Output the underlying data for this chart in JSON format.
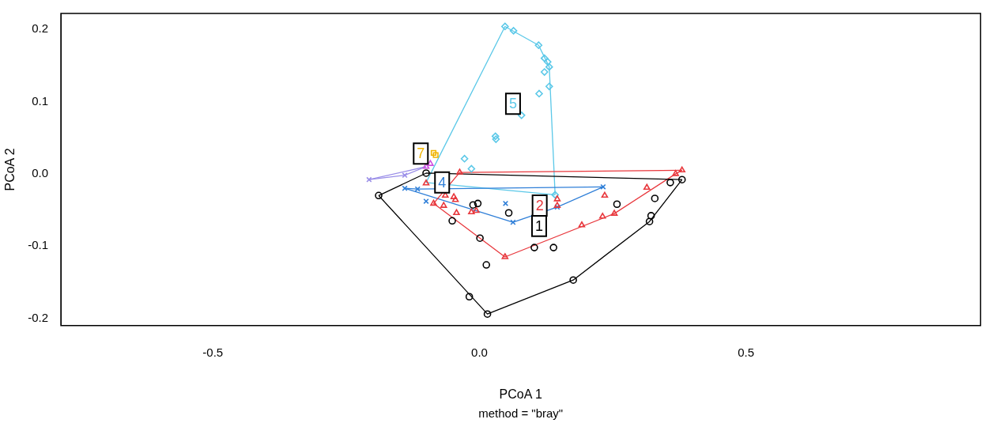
{
  "chart_data": {
    "type": "scatter",
    "xlabel": "PCoA 1",
    "ylabel": "PCoA 2",
    "xlim": [
      -0.785,
      0.94
    ],
    "ylim": [
      -0.21,
      0.222
    ],
    "xticks": [
      -0.5,
      {
        "value": 0,
        "label": "0.0"
      },
      0.5
    ],
    "yticks": [
      -0.2,
      -0.1,
      {
        "value": 0,
        "label": "0.0"
      },
      0.1,
      0.2
    ],
    "grid": false,
    "legend": false,
    "annotations": [
      {
        "text": "1",
        "x": 0.112,
        "y": -0.072
      },
      {
        "text": "2",
        "x": 0.113,
        "y": -0.044
      },
      {
        "text": "4",
        "x": -0.07,
        "y": -0.012
      },
      {
        "text": "5",
        "x": 0.063,
        "y": 0.097
      },
      {
        "text": "7",
        "x": -0.11,
        "y": 0.028
      },
      "method = \"bray\""
    ],
    "series": [
      {
        "type": "scatter",
        "marker": "circle",
        "color": "#000000",
        "x": [
          -0.189,
          -0.1,
          -0.012,
          -0.003,
          0.055,
          -0.051,
          0.001,
          0.013,
          -0.019,
          0.015,
          0.103,
          0.139,
          0.176,
          0.258,
          0.329,
          0.322,
          0.319,
          0.358,
          0.38
        ],
        "values": [
          -0.03,
          0.001,
          -0.043,
          -0.041,
          -0.054,
          -0.065,
          -0.089,
          -0.126,
          -0.17,
          -0.194,
          -0.102,
          -0.102,
          -0.147,
          -0.042,
          -0.034,
          -0.058,
          -0.066,
          -0.012,
          -0.008
        ]
      },
      {
        "type": "scatter",
        "marker": "triangle",
        "color": "#e8383d",
        "x": [
          -0.037,
          -0.1,
          -0.086,
          -0.067,
          -0.064,
          -0.048,
          -0.045,
          -0.043,
          -0.015,
          -0.006,
          0.048,
          0.146,
          0.146,
          0.192,
          0.231,
          0.253,
          0.235,
          0.314,
          0.368,
          0.38
        ],
        "values": [
          0.002,
          -0.013,
          -0.041,
          -0.044,
          -0.03,
          -0.032,
          -0.036,
          -0.054,
          -0.053,
          -0.051,
          -0.115,
          -0.035,
          -0.044,
          -0.071,
          -0.059,
          -0.055,
          -0.03,
          -0.019,
          0.0,
          0.005
        ]
      },
      {
        "type": "scatter",
        "marker": "cross",
        "color": "#2f7fd8",
        "x": [
          -0.14,
          -0.116,
          -0.1,
          0.049,
          0.063,
          0.146,
          0.232
        ],
        "values": [
          -0.02,
          -0.021,
          -0.038,
          -0.041,
          -0.067,
          -0.046,
          -0.018
        ]
      },
      {
        "type": "scatter",
        "marker": "diamond",
        "color": "#5bc8e8",
        "x": [
          0.048,
          0.064,
          0.111,
          0.122,
          0.128,
          0.131,
          0.122,
          0.112,
          0.131,
          0.079,
          0.031,
          0.03,
          -0.015,
          -0.028,
          0.142
        ],
        "values": [
          0.204,
          0.198,
          0.178,
          0.16,
          0.155,
          0.148,
          0.141,
          0.111,
          0.121,
          0.081,
          0.048,
          0.052,
          0.007,
          0.021,
          -0.029
        ]
      },
      {
        "type": "scatter",
        "marker": "square",
        "color": "#f0b400",
        "x": [
          -0.086,
          -0.082
        ],
        "values": [
          0.029,
          0.026
        ]
      },
      {
        "type": "scatter",
        "marker": "triangle",
        "color": "#d050e0",
        "x": [
          -0.1,
          -0.092
        ],
        "values": [
          0.01,
          0.014
        ]
      },
      {
        "type": "scatter",
        "marker": "cross",
        "color": "#9a8ee8",
        "x": [
          -0.207,
          -0.14
        ],
        "values": [
          -0.008,
          -0.002
        ]
      },
      {
        "type": "line",
        "marker": "none",
        "color": "#000000",
        "x": [
          -0.189,
          0.015,
          0.176,
          0.319,
          0.38
        ],
        "values": [
          -0.03,
          -0.194,
          -0.147,
          -0.066,
          -0.008
        ]
      },
      {
        "type": "line",
        "marker": "none",
        "color": "#000000",
        "x": [
          -0.189,
          -0.1,
          0.38
        ],
        "values": [
          -0.03,
          0.001,
          -0.008
        ]
      },
      {
        "type": "line",
        "marker": "none",
        "color": "#e8383d",
        "x": [
          -0.086,
          0.048,
          0.253,
          0.368,
          0.38
        ],
        "values": [
          -0.041,
          -0.115,
          -0.055,
          0.0,
          0.005
        ]
      },
      {
        "type": "line",
        "marker": "none",
        "color": "#e8383d",
        "x": [
          -0.086,
          -0.037,
          0.38
        ],
        "values": [
          -0.041,
          0.002,
          0.005
        ]
      },
      {
        "type": "line",
        "marker": "none",
        "color": "#2f7fd8",
        "x": [
          -0.14,
          0.063,
          0.146,
          0.232
        ],
        "values": [
          -0.02,
          -0.067,
          -0.046,
          -0.018
        ]
      },
      {
        "type": "line",
        "marker": "none",
        "color": "#2f7fd8",
        "x": [
          -0.14,
          -0.116,
          0.232
        ],
        "values": [
          -0.02,
          -0.021,
          -0.018
        ]
      },
      {
        "type": "line",
        "marker": "none",
        "color": "#5bc8e8",
        "x": [
          -0.1,
          0.048,
          0.111,
          0.131,
          0.142
        ],
        "values": [
          -0.012,
          0.204,
          0.178,
          0.148,
          -0.029
        ]
      },
      {
        "type": "line",
        "marker": "none",
        "color": "#5bc8e8",
        "x": [
          -0.1,
          0.142
        ],
        "values": [
          -0.012,
          -0.029
        ]
      },
      {
        "type": "line",
        "marker": "none",
        "color": "#9a8ee8",
        "x": [
          -0.207,
          -0.14,
          -0.1
        ],
        "values": [
          -0.008,
          -0.002,
          0.01
        ]
      },
      {
        "type": "line",
        "marker": "none",
        "color": "#9a8ee8",
        "x": [
          -0.207,
          -0.1
        ],
        "values": [
          -0.008,
          0.01
        ]
      }
    ]
  }
}
